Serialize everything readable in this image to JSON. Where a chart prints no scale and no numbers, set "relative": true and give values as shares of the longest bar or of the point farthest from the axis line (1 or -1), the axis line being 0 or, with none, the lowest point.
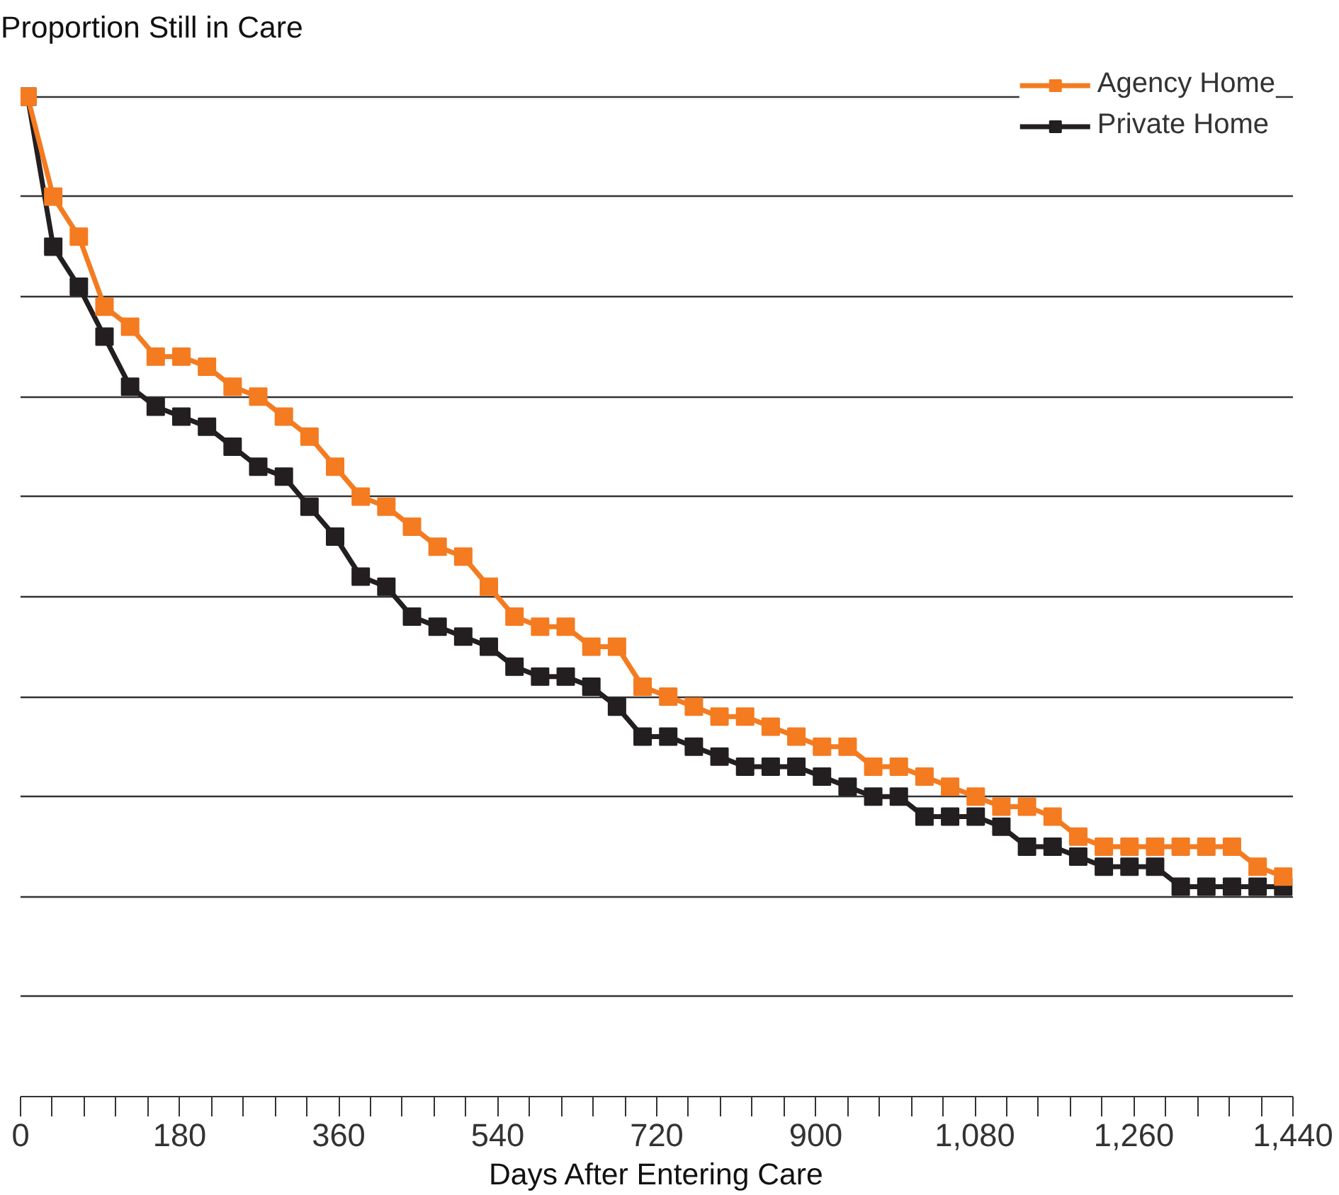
{
  "chart_data": {
    "type": "line",
    "ylabel": "Proportion Still in Care",
    "xlabel": "Days After Entering Care",
    "relative": true,
    "marker": "square",
    "line_style": "solid",
    "legend": "top right",
    "grid": "y",
    "x": [
      8,
      37,
      66,
      95,
      124,
      153,
      182,
      211,
      240,
      269,
      298,
      327,
      356,
      385,
      414,
      443,
      472,
      501,
      530,
      559,
      588,
      617,
      646,
      675,
      704,
      733,
      762,
      791,
      820,
      849,
      878,
      907,
      936,
      965,
      994,
      1023,
      1052,
      1081,
      1110,
      1139,
      1168,
      1197,
      1226,
      1255,
      1284,
      1313,
      1342,
      1371,
      1400,
      1429
    ],
    "xlim": [
      0,
      1440
    ],
    "xticks": [
      0,
      {
        "value": 36,
        "label": null
      },
      {
        "value": 72,
        "label": null
      },
      {
        "value": 108,
        "label": null
      },
      {
        "value": 144,
        "label": null
      },
      180,
      {
        "value": 216,
        "label": null
      },
      {
        "value": 252,
        "label": null
      },
      {
        "value": 288,
        "label": null
      },
      {
        "value": 324,
        "label": null
      },
      360,
      {
        "value": 396,
        "label": null
      },
      {
        "value": 432,
        "label": null
      },
      {
        "value": 468,
        "label": null
      },
      {
        "value": 504,
        "label": null
      },
      540,
      {
        "value": 576,
        "label": null
      },
      {
        "value": 612,
        "label": null
      },
      {
        "value": 648,
        "label": null
      },
      {
        "value": 684,
        "label": null
      },
      720,
      {
        "value": 756,
        "label": null
      },
      {
        "value": 792,
        "label": null
      },
      {
        "value": 828,
        "label": null
      },
      {
        "value": 864,
        "label": null
      },
      900,
      {
        "value": 936,
        "label": null
      },
      {
        "value": 972,
        "label": null
      },
      {
        "value": 1008,
        "label": null
      },
      {
        "value": 1044,
        "label": null
      },
      {
        "value": 1080,
        "label": "1,080"
      },
      {
        "value": 1116,
        "label": null
      },
      {
        "value": 1152,
        "label": null
      },
      {
        "value": 1188,
        "label": null
      },
      {
        "value": 1224,
        "label": null
      },
      {
        "value": 1260,
        "label": "1,260"
      },
      {
        "value": 1296,
        "label": null
      },
      {
        "value": 1332,
        "label": null
      },
      {
        "value": 1368,
        "label": null
      },
      {
        "value": 1404,
        "label": null
      },
      {
        "value": 1440,
        "label": "1,440"
      }
    ],
    "series": [
      {
        "name": "Agency Home",
        "color": "#f47b20",
        "values": [
          1.0,
          0.9,
          0.86,
          0.79,
          0.77,
          0.74,
          0.74,
          0.73,
          0.71,
          0.7,
          0.68,
          0.66,
          0.63,
          0.6,
          0.59,
          0.57,
          0.55,
          0.54,
          0.51,
          0.48,
          0.47,
          0.47,
          0.45,
          0.45,
          0.41,
          0.4,
          0.39,
          0.38,
          0.38,
          0.37,
          0.36,
          0.35,
          0.35,
          0.33,
          0.33,
          0.32,
          0.31,
          0.3,
          0.29,
          0.29,
          0.28,
          0.26,
          0.25,
          0.25,
          0.25,
          0.25,
          0.25,
          0.25,
          0.23,
          0.22
        ]
      },
      {
        "name": "Private Home",
        "color": "#231f20",
        "values": [
          1.0,
          0.85,
          0.81,
          0.76,
          0.71,
          0.69,
          0.68,
          0.67,
          0.65,
          0.63,
          0.62,
          0.59,
          0.56,
          0.52,
          0.51,
          0.48,
          0.47,
          0.46,
          0.45,
          0.43,
          0.42,
          0.42,
          0.41,
          0.39,
          0.36,
          0.36,
          0.35,
          0.34,
          0.33,
          0.33,
          0.33,
          0.32,
          0.31,
          0.3,
          0.3,
          0.28,
          0.28,
          0.28,
          0.27,
          0.25,
          0.25,
          0.24,
          0.23,
          0.23,
          0.23,
          0.21,
          0.21,
          0.21,
          0.21,
          0.21
        ]
      }
    ]
  }
}
